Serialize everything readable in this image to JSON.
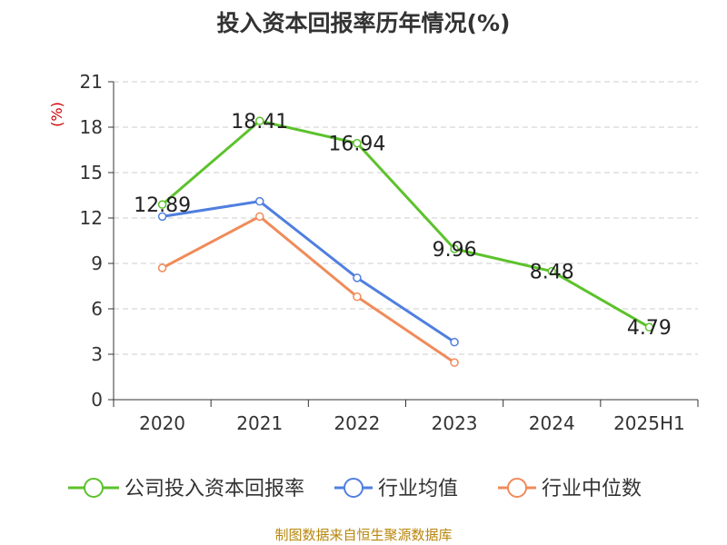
{
  "title": "投入资本回报率历年情况(%)",
  "source": "制图数据来自恒生聚源数据库",
  "colors": {
    "company": "#5cc22b",
    "industry_avg": "#4f7fdf",
    "industry_median": "#f08b5a",
    "axis": "#333333",
    "grid": "#cccccc",
    "unit": "#cc0000",
    "source": "#b8860b"
  },
  "chart_data": {
    "type": "line",
    "categories": [
      "2020",
      "2021",
      "2022",
      "2023",
      "2024",
      "2025H1"
    ],
    "y_unit": "(%)",
    "ylim": [
      0,
      21
    ],
    "yticks": [
      0,
      3,
      6,
      9,
      12,
      15,
      18,
      21
    ],
    "grid": true,
    "legend_position": "bottom",
    "series": [
      {
        "name": "公司投入资本回报率",
        "color": "#5cc22b",
        "values": [
          12.89,
          18.41,
          16.94,
          9.96,
          8.48,
          4.79
        ],
        "labels": [
          "12.89",
          "18.41",
          "16.94",
          "9.96",
          "8.48",
          "4.79"
        ]
      },
      {
        "name": "行业均值",
        "color": "#4f7fdf",
        "values": [
          12.1,
          13.1,
          8.05,
          3.8,
          null,
          null
        ]
      },
      {
        "name": "行业中位数",
        "color": "#f08b5a",
        "values": [
          8.7,
          12.1,
          6.8,
          2.45,
          null,
          null
        ]
      }
    ]
  }
}
